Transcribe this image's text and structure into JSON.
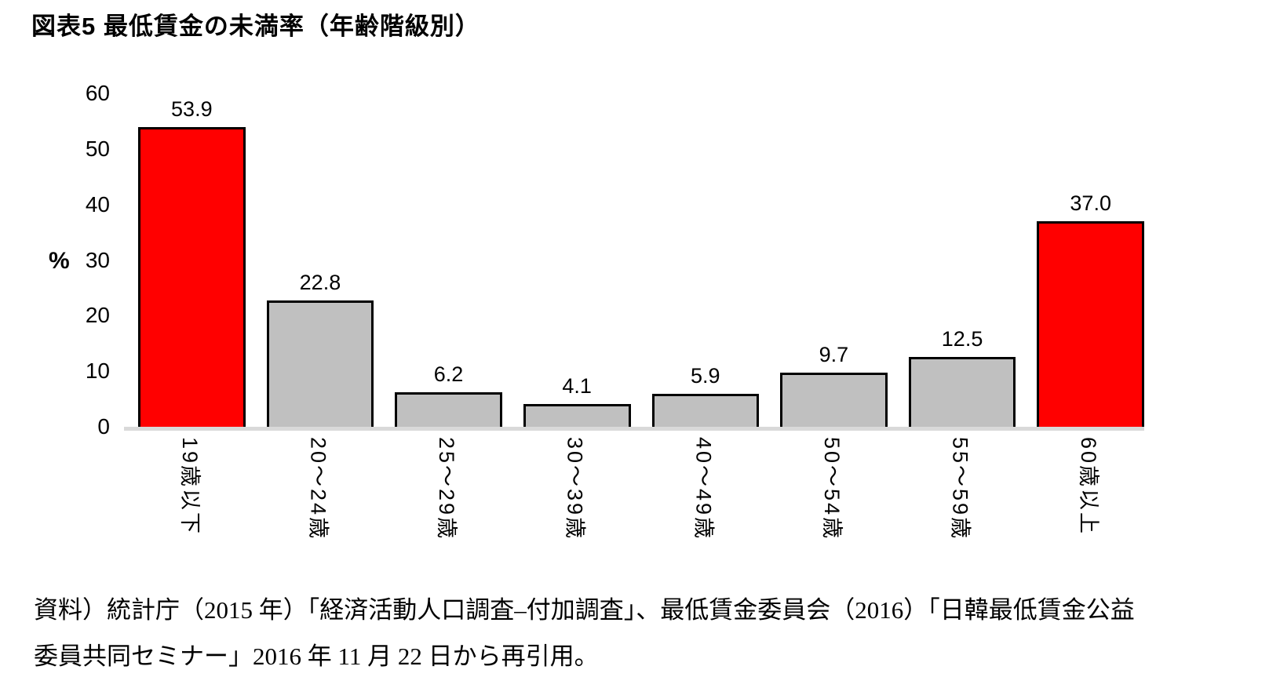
{
  "title": "図表5 最低賃金の未満率（年齢階級別）",
  "chart_data": {
    "type": "bar",
    "title": "図表5 最低賃金の未満率（年齢階級別）",
    "categories": [
      "19歳以下",
      "20〜24歳",
      "25〜29歳",
      "30〜39歳",
      "40〜49歳",
      "50〜54歳",
      "55〜59歳",
      "60歳以上"
    ],
    "values": [
      53.9,
      22.8,
      6.2,
      4.1,
      5.9,
      9.7,
      12.5,
      37.0
    ],
    "value_labels": [
      "53.9",
      "22.8",
      "6.2",
      "4.1",
      "5.9",
      "9.7",
      "12.5",
      "37.0"
    ],
    "bar_colors": [
      "#ff0000",
      "#c0c0c0",
      "#c0c0c0",
      "#c0c0c0",
      "#c0c0c0",
      "#c0c0c0",
      "#c0c0c0",
      "#ff0000"
    ],
    "highlight_color": "#ff0000",
    "default_color": "#c0c0c0",
    "bar_border_color": "#000000",
    "baseline_color": "#d9d9d9",
    "xlabel": "",
    "ylabel": "%",
    "ylim": [
      0,
      60
    ],
    "yticks": [
      60,
      50,
      40,
      30,
      20,
      10,
      0
    ],
    "grid": false,
    "legend": false
  },
  "source": {
    "line1": "資料）統計庁（2015 年）「経済活動人口調査–付加調査」、最低賃金委員会（2016）「日韓最低賃金公益",
    "line2": "委員共同セミナー」2016 年 11 月 22 日から再引用。"
  }
}
